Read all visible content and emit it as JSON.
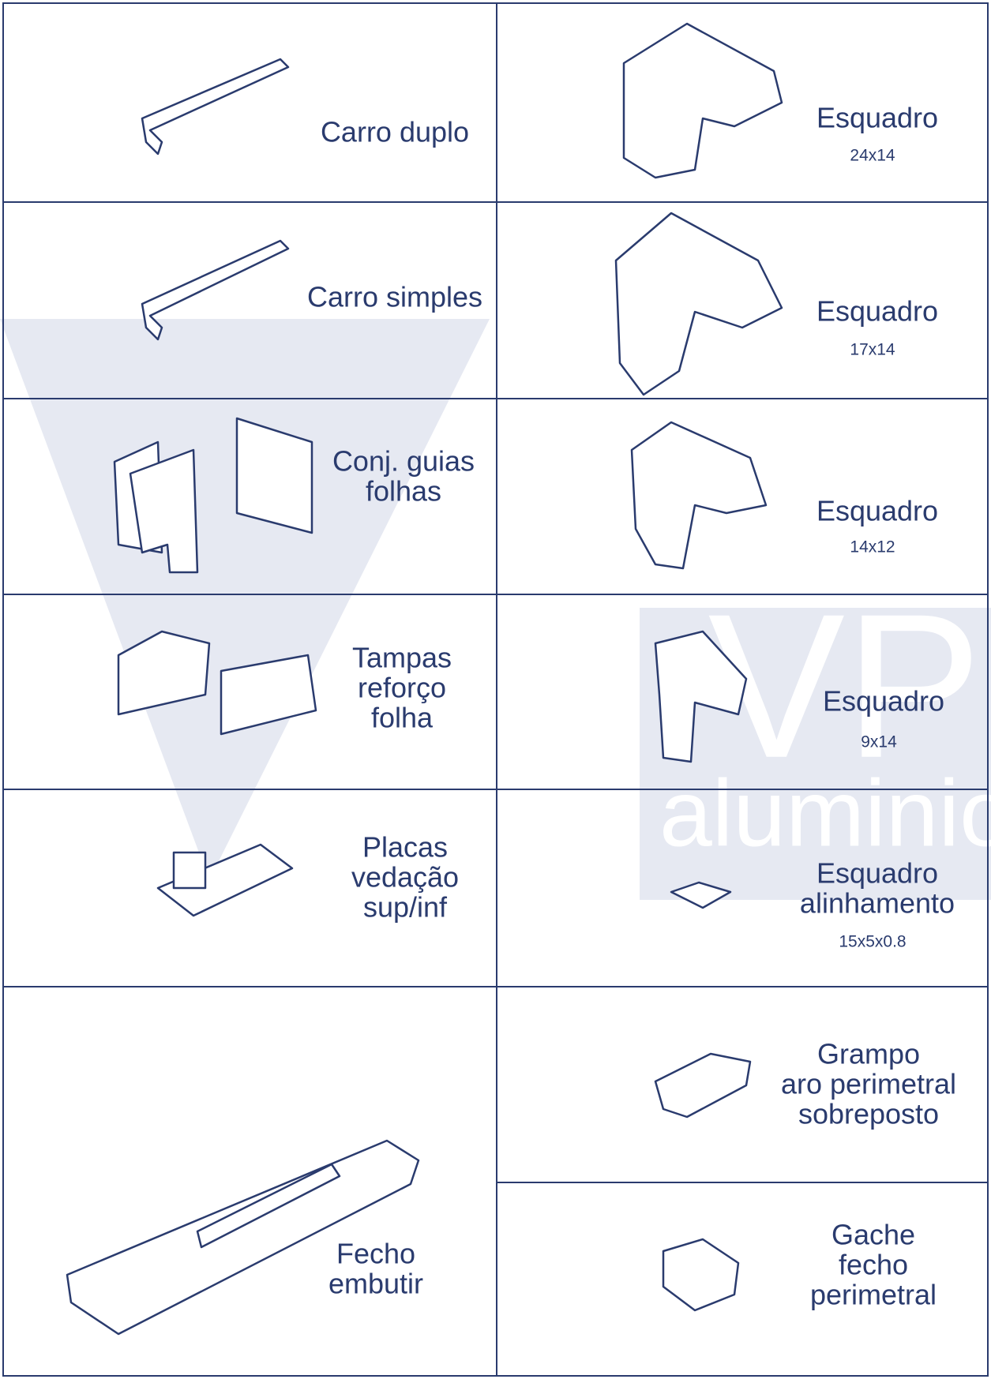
{
  "watermark": {
    "brand": "VP",
    "text": "aluminio"
  },
  "items": [
    {
      "lines": [
        "Carro duplo"
      ]
    },
    {
      "lines": [
        "Carro simples"
      ]
    },
    {
      "lines": [
        "Conj. guias",
        "folhas"
      ]
    },
    {
      "lines": [
        "Tampas",
        "reforço",
        "folha"
      ]
    },
    {
      "lines": [
        "Placas",
        "vedação",
        "sup/inf"
      ]
    },
    {
      "lines": [
        "Fecho",
        "embutir"
      ]
    },
    {
      "lines": [
        "Esquadro"
      ],
      "size": "24x14"
    },
    {
      "lines": [
        "Esquadro"
      ],
      "size": "17x14"
    },
    {
      "lines": [
        "Esquadro"
      ],
      "size": "14x12"
    },
    {
      "lines": [
        "Esquadro"
      ],
      "size": "9x14"
    },
    {
      "lines": [
        "Esquadro",
        "alinhamento"
      ],
      "size": "15x5x0.8"
    },
    {
      "lines": [
        "Grampo",
        "aro perimetral",
        "sobreposto"
      ]
    },
    {
      "lines": [
        "Gache",
        "fecho",
        "perimetral"
      ]
    }
  ]
}
